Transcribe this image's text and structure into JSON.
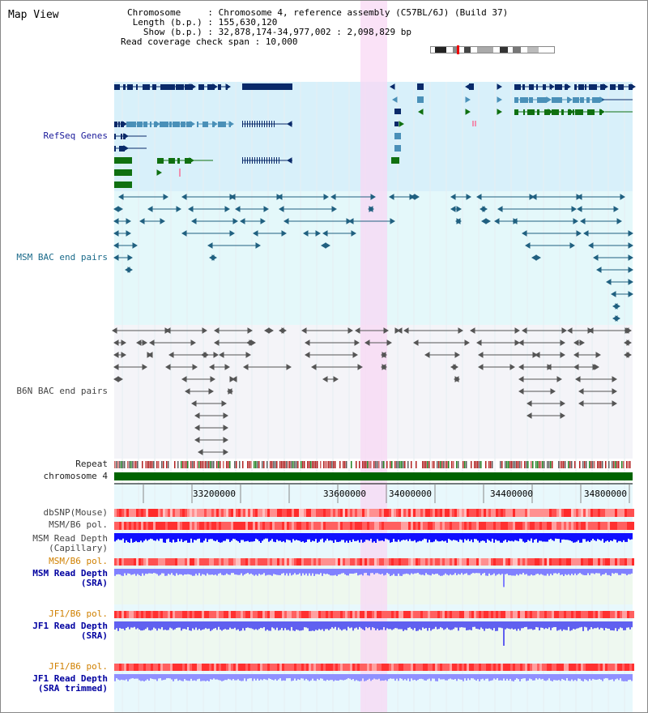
{
  "page": {
    "title": "Map View"
  },
  "info": {
    "chromosome": "Chromosome     : Chromosome 4, reference assembly (C57BL/6J) (Build 37)",
    "length": " Length (b.p.) : 155,630,120",
    "show": "   Show (b.p.) : 32,878,174-34,977,002 : 2,098,829 bp",
    "span": "Read coverage check span : 10,000"
  },
  "tracks": {
    "refseq": "RefSeq Genes",
    "msm_bac": "MSM BAC end pairs",
    "b6n_bac": "B6N BAC end pairs",
    "repeat": "Repeat",
    "chrom": "chromosome 4",
    "dbsnp": "dbSNP(Mouse)",
    "msm_pol1": "MSM/B6 pol.",
    "msm_depth_cap": "MSM Read Depth\n(Capillary)",
    "msm_pol2": "MSM/B6 pol.",
    "msm_depth_sra": "MSM Read Depth\n(SRA)",
    "jf1_pol1": "JF1/B6 pol.",
    "jf1_depth_sra": "JF1 Read Depth\n(SRA)",
    "jf1_pol2": "JF1/B6 pol.",
    "jf1_depth_trim": "JF1 Read Depth\n(SRA trimmed)"
  },
  "axis": {
    "ticks": [
      "33200000",
      "33600000",
      "34000000",
      "34400000",
      "34800000"
    ]
  },
  "colors": {
    "refseq_bg": "#d8f0fa",
    "msm_bg": "#e4f8fa",
    "b6n_bg": "#f4f4f8",
    "highlight": "#f8d8f4",
    "navy": "#0a2a6a",
    "steel": "#4a90b8",
    "green": "#107010",
    "chrom": "#006400"
  }
}
